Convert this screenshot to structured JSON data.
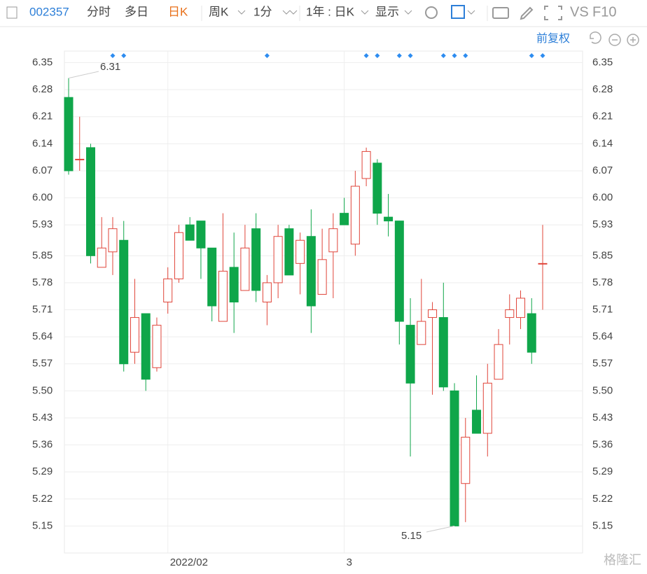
{
  "toolbar": {
    "code": "002357",
    "tabs": [
      "分时",
      "多日",
      "日K",
      "周K",
      "1分",
      "1年 : 日K",
      "显示"
    ],
    "active_tab": "日K",
    "right": [
      "VS",
      "F10"
    ],
    "adjust": "前复权"
  },
  "watermark": "格隆汇",
  "chart_data": {
    "type": "candlestick",
    "categories": [
      null,
      null,
      null,
      null,
      null,
      null,
      null,
      null,
      null,
      "2022/02",
      null,
      null,
      null,
      null,
      null,
      null,
      null,
      null,
      null,
      null,
      null,
      null,
      null,
      null,
      null,
      "3",
      null,
      null,
      null,
      null,
      null,
      null,
      null,
      null,
      null,
      null,
      null,
      null,
      null,
      null,
      null,
      null,
      null,
      null
    ],
    "open": [
      6.26,
      6.1,
      6.13,
      5.82,
      5.86,
      5.89,
      5.6,
      5.7,
      5.56,
      5.73,
      5.79,
      5.93,
      5.94,
      5.87,
      5.68,
      5.82,
      5.76,
      5.92,
      5.73,
      5.78,
      5.92,
      5.83,
      5.9,
      5.75,
      5.86,
      5.96,
      5.88,
      6.05,
      6.09,
      5.95,
      5.94,
      5.67,
      5.62,
      5.69,
      5.69,
      5.5,
      5.26,
      5.45,
      5.39,
      5.53,
      5.69,
      5.69,
      5.7,
      5.83
    ],
    "high": [
      6.31,
      6.21,
      6.14,
      5.95,
      5.95,
      5.94,
      5.79,
      5.7,
      5.69,
      5.82,
      5.93,
      5.95,
      5.94,
      5.87,
      5.96,
      5.91,
      5.93,
      5.96,
      5.8,
      5.93,
      5.93,
      5.91,
      5.97,
      5.92,
      5.96,
      6.0,
      6.07,
      6.13,
      6.1,
      6.01,
      5.94,
      5.74,
      5.79,
      5.73,
      5.78,
      5.52,
      5.43,
      5.54,
      5.57,
      5.66,
      5.75,
      5.76,
      5.74,
      5.93
    ],
    "low": [
      6.06,
      6.07,
      5.83,
      5.82,
      5.8,
      5.55,
      5.57,
      5.5,
      5.55,
      5.7,
      5.78,
      5.89,
      5.79,
      5.68,
      5.68,
      5.65,
      5.76,
      5.73,
      5.67,
      5.74,
      5.8,
      5.75,
      5.65,
      5.75,
      5.74,
      5.93,
      5.85,
      6.03,
      5.93,
      5.9,
      5.62,
      5.33,
      5.62,
      5.49,
      5.5,
      5.15,
      5.16,
      5.39,
      5.33,
      5.53,
      5.62,
      5.66,
      5.57,
      5.71
    ],
    "close": [
      6.07,
      6.1,
      5.85,
      5.87,
      5.92,
      5.57,
      5.69,
      5.53,
      5.67,
      5.79,
      5.91,
      5.89,
      5.87,
      5.72,
      5.81,
      5.73,
      5.87,
      5.76,
      5.78,
      5.9,
      5.8,
      5.89,
      5.72,
      5.84,
      5.92,
      5.93,
      6.03,
      6.12,
      5.96,
      5.94,
      5.68,
      5.52,
      5.68,
      5.71,
      5.51,
      5.15,
      5.38,
      5.39,
      5.52,
      5.62,
      5.71,
      5.74,
      5.6,
      5.83
    ],
    "up_color": "#e0453a",
    "down_color": "#0fa64a",
    "ylim": [
      5.08,
      6.38
    ],
    "yticks": [
      6.35,
      6.28,
      6.21,
      6.14,
      6.07,
      {
        "value": 6.0,
        "label": "6.00"
      },
      5.93,
      5.85,
      5.78,
      5.71,
      5.64,
      5.57,
      {
        "value": 5.5,
        "label": "5.50"
      },
      5.43,
      5.36,
      5.29,
      5.22,
      5.15
    ],
    "annotations": [
      {
        "value": 6.31
      },
      {
        "value": 5.15
      }
    ],
    "grid": true
  }
}
